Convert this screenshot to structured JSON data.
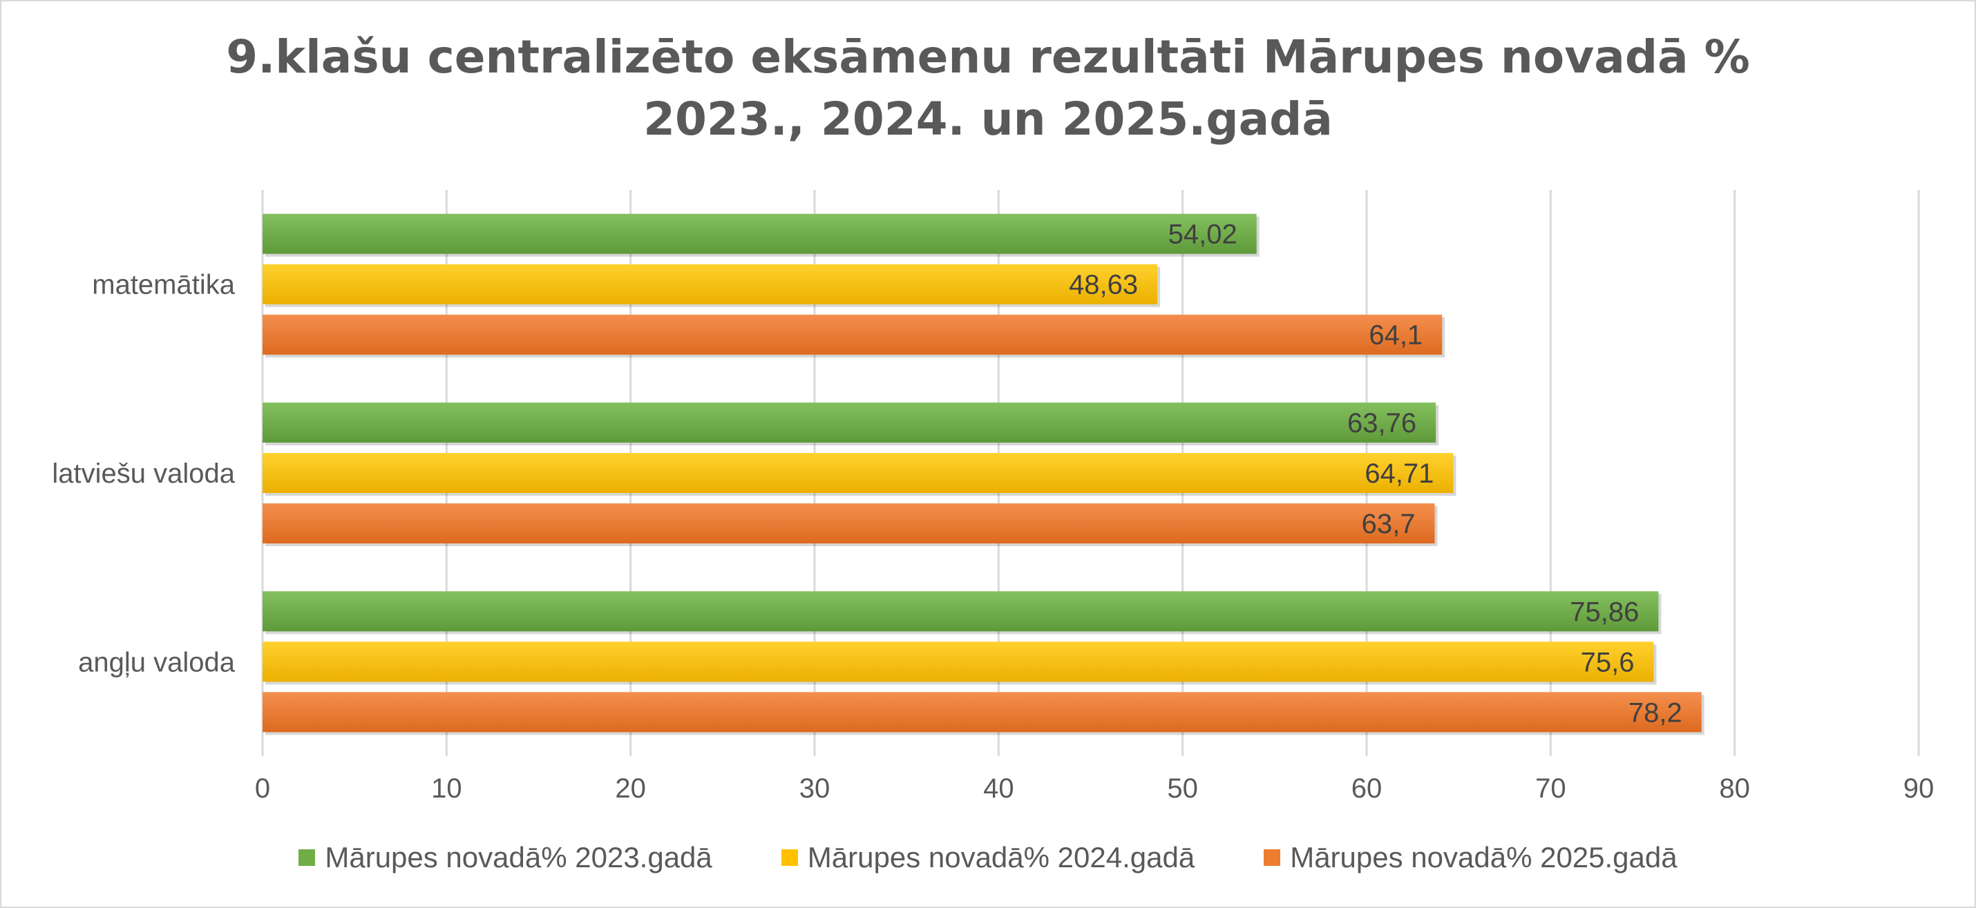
{
  "chart_data": {
    "type": "bar",
    "orientation": "horizontal",
    "title_lines": [
      "9.klašu centralizēto eksāmenu rezultāti Mārupes novadā %",
      "2023., 2024. un 2025.gadā"
    ],
    "categories": [
      "matemātika",
      "latviešu valoda",
      "angļu valoda"
    ],
    "series": [
      {
        "name": "Mārupes novadā% 2023.gadā",
        "color": "#70ad47",
        "values": [
          54.02,
          63.76,
          75.86
        ],
        "labels": [
          "54,02",
          "63,76",
          "75,86"
        ]
      },
      {
        "name": "Mārupes novadā% 2024.gadā",
        "color": "#ffc000",
        "values": [
          48.63,
          64.71,
          75.6
        ],
        "labels": [
          "48,63",
          "64,71",
          "75,6"
        ]
      },
      {
        "name": "Mārupes novadā% 2025.gadā",
        "color": "#ed7d31",
        "values": [
          64.1,
          63.7,
          78.2
        ],
        "labels": [
          "64,1",
          "63,7",
          "78,2"
        ]
      }
    ],
    "xlim": [
      0,
      90
    ],
    "xticks": [
      0,
      10,
      20,
      30,
      40,
      50,
      60,
      70,
      80,
      90
    ],
    "grid": true,
    "legend_position": "bottom"
  }
}
